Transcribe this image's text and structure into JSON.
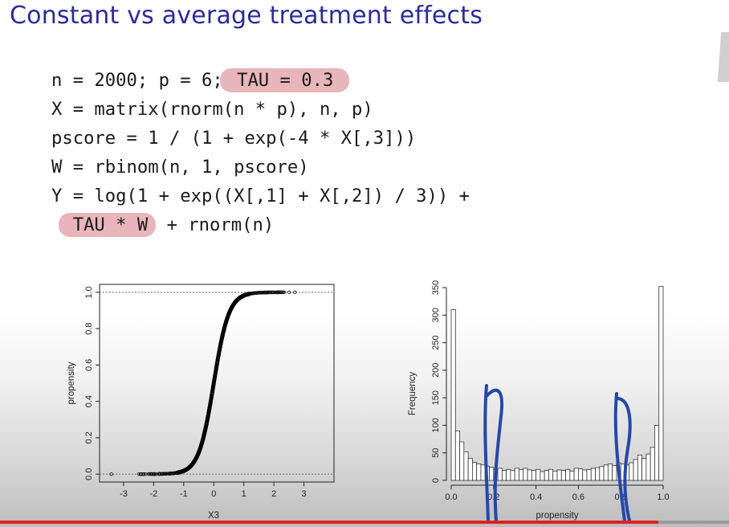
{
  "slide": {
    "title": "Constant vs average treatment effects",
    "code": {
      "line1_pre": "n = 2000; p = 6;",
      "line1_hl": " TAU = 0.3",
      "line2": "X = matrix(rnorm(n * p), n, p)",
      "line3": "pscore = 1 / (1 + exp(-4 * X[,3]))",
      "line4": "W = rbinom(n, 1, pscore)",
      "line5": "Y = log(1 + exp((X[,1] + X[,2]) / 3)) +",
      "line6_hl": "TAU * W",
      "line6_post": " + rnorm(n)"
    }
  },
  "colors": {
    "title": "#2b2b9a",
    "highlight": "#d67882",
    "annotation_ink": "#2747a8",
    "bottom_bar": "#e02020"
  },
  "chart_data": [
    {
      "type": "scatter",
      "description_function": "propensity = 1 / (1 + exp(-4 * X3))",
      "title": "",
      "xlabel": "X3",
      "ylabel": "propensity",
      "xlim": [
        -3.8,
        4.0
      ],
      "ylim": [
        0,
        1
      ],
      "xticks": [
        "-3",
        "-2",
        "-1",
        "0",
        "1",
        "2",
        "3"
      ],
      "yticks": [
        "0.0",
        "0.2",
        "0.4",
        "0.6",
        "0.8",
        "1.0"
      ],
      "reference_lines": [
        0,
        1
      ],
      "grid": false
    },
    {
      "type": "bar",
      "subtype": "histogram",
      "title": "",
      "xlabel": "propensity",
      "ylabel": "Frequency",
      "xlim": [
        0,
        1
      ],
      "ylim": [
        0,
        350
      ],
      "bin_width": 0.02,
      "xticks": [
        "0.0",
        "0.2",
        "0.4",
        "0.6",
        "0.8",
        "1.0"
      ],
      "yticks": [
        "0",
        "50",
        "100",
        "150",
        "200",
        "250",
        "300",
        "350"
      ],
      "values": [
        310,
        90,
        70,
        52,
        40,
        33,
        30,
        28,
        26,
        24,
        20,
        22,
        18,
        20,
        18,
        22,
        20,
        22,
        19,
        18,
        20,
        16,
        18,
        20,
        17,
        19,
        18,
        20,
        17,
        22,
        21,
        19,
        20,
        22,
        23,
        25,
        28,
        30,
        27,
        32,
        30,
        28,
        32,
        38,
        46,
        40,
        48,
        60,
        100,
        352
      ],
      "grid": false
    }
  ]
}
